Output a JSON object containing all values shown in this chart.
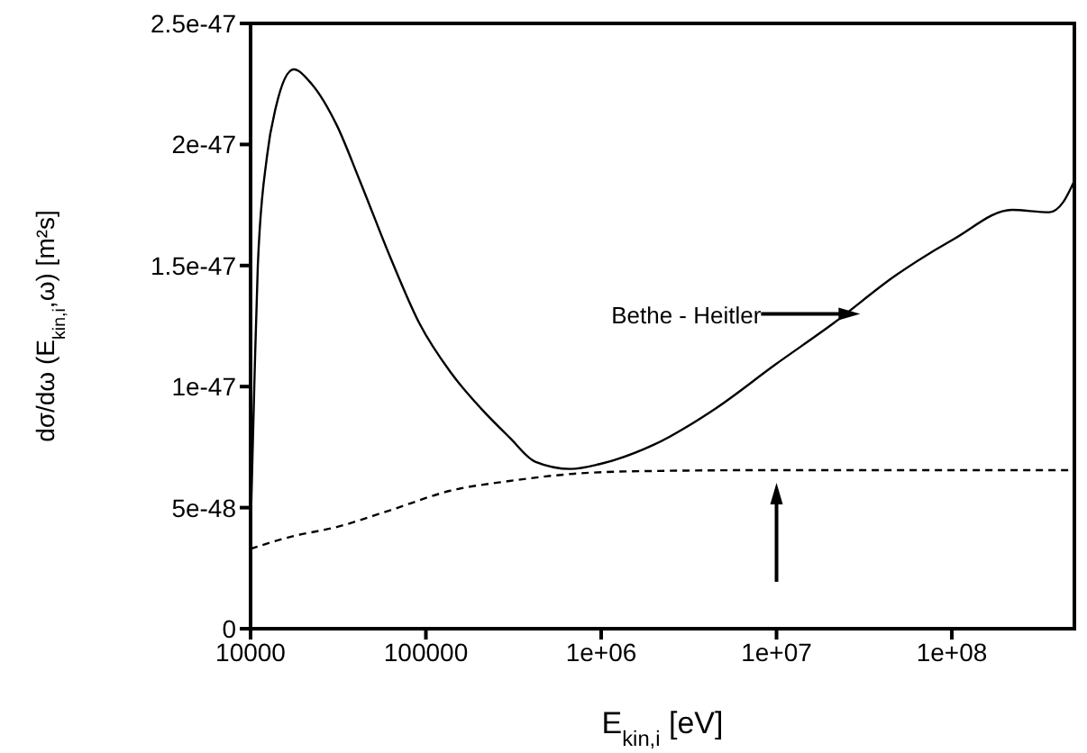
{
  "chart_data": {
    "type": "line",
    "xlabel": "E$_{kin,i}$ [eV]",
    "ylabel": "dσ/dω (E$_{kin,i}$,ω) [m²s]",
    "log": "x",
    "grid": false,
    "legend": false,
    "marker": "none",
    "xlim": [
      10000,
      500000000
    ],
    "xticks": [
      10000,
      100000,
      {
        "value": 1000000,
        "label": "1e+06"
      },
      {
        "value": 10000000,
        "label": "1e+07"
      },
      {
        "value": 100000000,
        "label": "1e+08"
      }
    ],
    "ylim": [
      0,
      2.5e-47
    ],
    "yticks": [
      {
        "value": 0,
        "label": "0"
      },
      {
        "value": 5e-48,
        "label": "5e-48"
      },
      {
        "value": 1e-47,
        "label": "1e-47"
      },
      {
        "value": 1.5e-47,
        "label": "1.5e-47"
      },
      {
        "value": 2e-47,
        "label": "2e-47"
      },
      {
        "value": 2.5e-47,
        "label": "2.5e-47"
      }
    ],
    "annotations": [
      "Bethe - Heitler"
    ],
    "series": [
      {
        "color": "#000000",
        "line_style": "solid",
        "x": [
          10000,
          10500,
          11000,
          12400,
          13900,
          17600,
          22300,
          31000,
          42000,
          63000,
          92000,
          138000,
          206000,
          300000,
          420000,
          670000,
          980000,
          2000000,
          4500000,
          9800000,
          21000000,
          48000000,
          103000000,
          220000000,
          360000000,
          430000000,
          500000000
        ],
        "values": [
          4e-48,
          1e-47,
          1.5e-47,
          1.95e-47,
          2.15e-47,
          2.31e-47,
          2.25e-47,
          2.08e-47,
          1.85e-47,
          1.53e-47,
          1.26e-47,
          1.06e-47,
          9.1e-48,
          7.9e-48,
          6.9e-48,
          6.6e-48,
          6.8e-48,
          7.6e-48,
          9.1e-48,
          1.09e-47,
          1.26e-47,
          1.46e-47,
          1.61e-47,
          1.73e-47,
          1.72e-47,
          1.76e-47,
          1.85e-47
        ]
      },
      {
        "color": "#000000",
        "line_style": "dashed",
        "x": [
          10000,
          17000,
          31000,
          63000,
          138000,
          300000,
          700000,
          1500000,
          10000000,
          100000000,
          500000000
        ],
        "values": [
          3.3e-48,
          3.8e-48,
          4.2e-48,
          4.9e-48,
          5.7e-48,
          6.1e-48,
          6.4e-48,
          6.5e-48,
          6.55e-48,
          6.55e-48,
          6.55e-48
        ]
      }
    ]
  }
}
